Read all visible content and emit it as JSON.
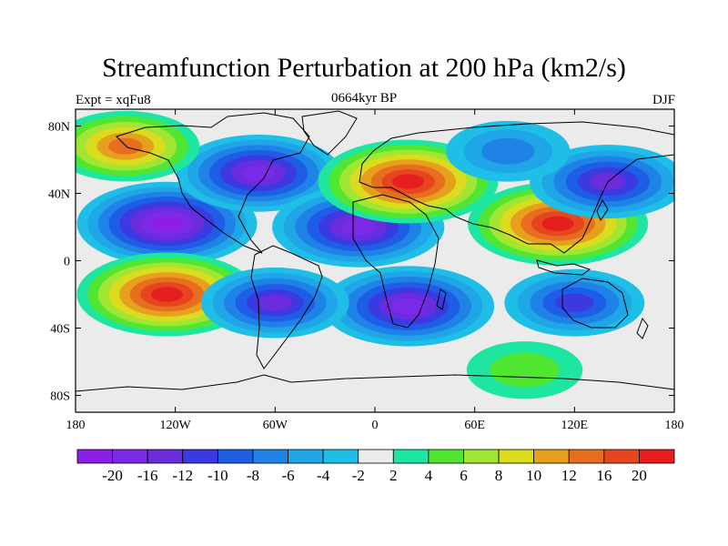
{
  "title": "Streamfunction Perturbation at 200 hPa (km2/s)",
  "left_label": "Expt = xqFu8",
  "center_label": "0664kyr BP",
  "right_label": "DJF",
  "lon_ticks": [
    "180",
    "120W",
    "60W",
    "0",
    "60E",
    "120E",
    "180"
  ],
  "lat_ticks": [
    "80N",
    "40N",
    "0",
    "40S",
    "80S"
  ],
  "colorbar": {
    "colors": [
      "#8c1ee6",
      "#7b2ae8",
      "#6a2cdc",
      "#3a3ae0",
      "#1e5ee6",
      "#1e82e6",
      "#1ea6e6",
      "#1ebee6",
      "#ebebeb",
      "#1ee6a0",
      "#50e632",
      "#a0e632",
      "#dcdc1e",
      "#e6a01e",
      "#e66e1e",
      "#e6461e",
      "#e61e1e"
    ],
    "labels": [
      "-20",
      "-16",
      "-12",
      "-10",
      "-8",
      "-6",
      "-4",
      "-2",
      "2",
      "4",
      "6",
      "8",
      "10",
      "12",
      "16",
      "20"
    ]
  },
  "chart_data": {
    "type": "heatmap",
    "title": "Streamfunction Perturbation at 200 hPa (km2/s)",
    "subtitle": "0664kyr BP",
    "left_label": "Expt = xqFu8",
    "right_label": "DJF",
    "xlim": [
      -180,
      180
    ],
    "ylim": [
      -90,
      90
    ],
    "contour_levels": [
      -20,
      -16,
      -12,
      -10,
      -8,
      -6,
      -4,
      -2,
      2,
      4,
      6,
      8,
      10,
      12,
      16,
      20
    ],
    "features": [
      {
        "lon": -125,
        "lat": 22,
        "value": -20
      },
      {
        "lon": -70,
        "lat": 52,
        "value": -16
      },
      {
        "lon": -10,
        "lat": 20,
        "value": -18
      },
      {
        "lon": 20,
        "lat": 47,
        "value": 20
      },
      {
        "lon": 110,
        "lat": 22,
        "value": 20
      },
      {
        "lon": 140,
        "lat": 47,
        "value": -14
      },
      {
        "lon": -125,
        "lat": -20,
        "value": 20
      },
      {
        "lon": 20,
        "lat": -27,
        "value": -18
      },
      {
        "lon": -60,
        "lat": -25,
        "value": -12
      },
      {
        "lon": 120,
        "lat": -25,
        "value": -10
      },
      {
        "lon": -150,
        "lat": 68,
        "value": 12
      },
      {
        "lon": 80,
        "lat": 65,
        "value": -6
      },
      {
        "lon": 90,
        "lat": -65,
        "value": 4
      }
    ]
  }
}
